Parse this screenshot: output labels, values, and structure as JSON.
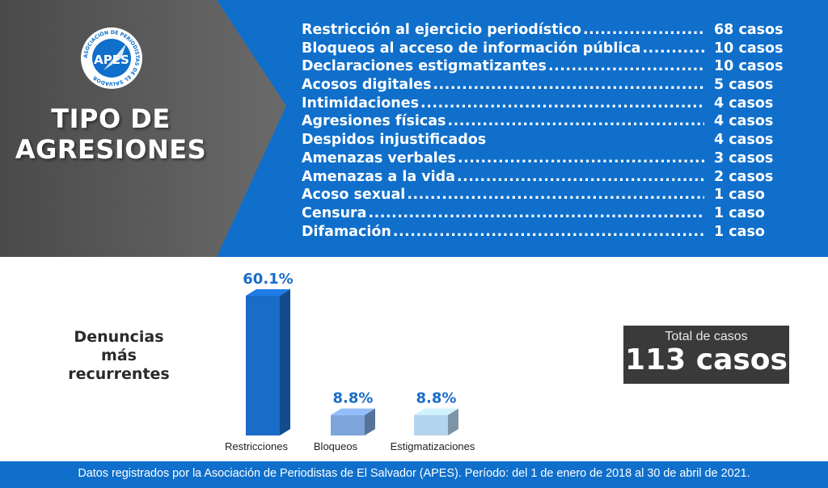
{
  "logo": {
    "acronym": "APES",
    "ring_text": "ASOCIACIÓN DE PERIODISTAS DE EL SALVADOR"
  },
  "title": {
    "line1": "TIPO DE",
    "line2": "AGRESIONES"
  },
  "aggressions": [
    {
      "label": "Restricción al ejercicio periodístico",
      "value": "68 casos",
      "dots": true
    },
    {
      "label": "Bloqueos al acceso de información pública",
      "value": "10 casos",
      "dots": true
    },
    {
      "label": "Declaraciones estigmatizantes",
      "value": "10 casos",
      "dots": true
    },
    {
      "label": "Acosos digitales",
      "value": "5 casos",
      "dots": true
    },
    {
      "label": "Intimidaciones",
      "value": "4 casos",
      "dots": true
    },
    {
      "label": "Agresiones físicas",
      "value": "4 casos",
      "dots": true
    },
    {
      "label": "Despidos injustificados",
      "value": "4 casos",
      "dots": false
    },
    {
      "label": "Amenazas verbales",
      "value": "3 casos",
      "dots": true
    },
    {
      "label": "Amenazas a la vida",
      "value": "2 casos",
      "dots": true
    },
    {
      "label": "Acoso sexual",
      "value": "1 caso",
      "dots": true
    },
    {
      "label": "Censura",
      "value": "1 caso",
      "dots": true
    },
    {
      "label": "Difamación",
      "value": "1 caso",
      "dots": true
    }
  ],
  "subtitle": {
    "line1": "Denuncias",
    "line2": "más recurrentes"
  },
  "chart_data": {
    "type": "bar",
    "title": "",
    "xlabel": "",
    "ylabel": "",
    "categories": [
      "Restricciones",
      "Bloqueos",
      "Estigmatizaciones"
    ],
    "values": [
      60.1,
      8.8,
      8.8
    ],
    "value_labels": [
      "60.1%",
      "8.8%",
      "8.8%"
    ],
    "ylim": [
      0,
      60.1
    ],
    "grid": false,
    "colors": [
      "#1a6cc9",
      "#7ea4dc",
      "#b3d3ee"
    ],
    "label_color": "#1a6cc9"
  },
  "total": {
    "caption": "Total de casos",
    "value": "113 casos"
  },
  "footer": "Datos registrados por la Asociación de Periodistas de El Salvador (APES). Período: del 1 de enero de 2018 al 30 de abril de 2021."
}
